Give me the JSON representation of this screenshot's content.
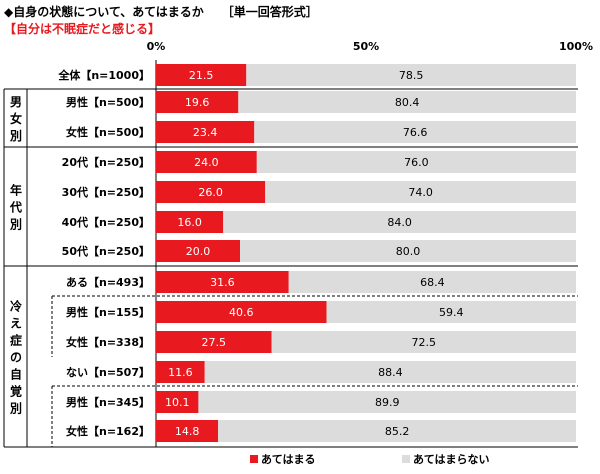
{
  "title": "◆自身の状態について、あてはまるか",
  "format_label": "［単一回答形式］",
  "subtitle": "【自分は不眠症だと感じる】",
  "chart_data": {
    "type": "bar",
    "orientation": "horizontal",
    "stacked": true,
    "xlim": [
      0,
      100
    ],
    "ticks": [
      "0%",
      "50%",
      "100%"
    ],
    "rows": [
      {
        "label": "全体【n=1000】",
        "group": "",
        "values": [
          21.5,
          78.5
        ]
      },
      {
        "label": "男性【n=500】",
        "group": "男女別",
        "values": [
          19.6,
          80.4
        ]
      },
      {
        "label": "女性【n=500】",
        "group": "男女別",
        "values": [
          23.4,
          76.6
        ]
      },
      {
        "label": "20代【n=250】",
        "group": "年代別",
        "values": [
          24.0,
          76.0
        ]
      },
      {
        "label": "30代【n=250】",
        "group": "年代別",
        "values": [
          26.0,
          74.0
        ]
      },
      {
        "label": "40代【n=250】",
        "group": "年代別",
        "values": [
          16.0,
          84.0
        ]
      },
      {
        "label": "50代【n=250】",
        "group": "年代別",
        "values": [
          20.0,
          80.0
        ]
      },
      {
        "label": "ある【n=493】",
        "group": "冷え症の自覚別",
        "values": [
          31.6,
          68.4
        ]
      },
      {
        "label": "男性【n=155】",
        "group": "冷え症の自覚別",
        "values": [
          40.6,
          59.4
        ]
      },
      {
        "label": "女性【n=338】",
        "group": "冷え症の自覚別",
        "values": [
          27.5,
          72.5
        ]
      },
      {
        "label": "ない【n=507】",
        "group": "冷え症の自覚別",
        "values": [
          11.6,
          88.4
        ]
      },
      {
        "label": "男性【n=345】",
        "group": "冷え症の自覚別",
        "values": [
          10.1,
          89.9
        ]
      },
      {
        "label": "女性【n=162】",
        "group": "冷え症の自覚別",
        "values": [
          14.8,
          85.2
        ]
      }
    ],
    "groups": [
      "男女別",
      "年代別",
      "冷え症の自覚別"
    ],
    "series": [
      {
        "name": "あてはまる",
        "color": "#e8191f"
      },
      {
        "name": "あてはまらない",
        "color": "#dcdcdc"
      }
    ],
    "legend_position": "bottom"
  }
}
